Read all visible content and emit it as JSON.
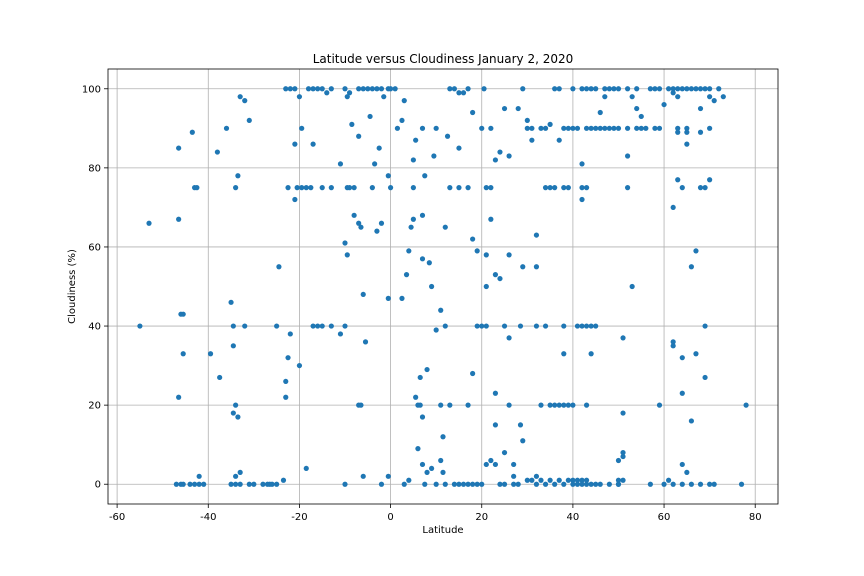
{
  "chart_data": {
    "type": "scatter",
    "title": "Latitude versus Cloudiness January 2, 2020",
    "xlabel": "Latitude",
    "ylabel": "Cloudiness (%)",
    "xlim": [
      -62,
      85
    ],
    "ylim": [
      -5,
      105
    ],
    "xticks": [
      -60,
      -40,
      -20,
      0,
      20,
      40,
      60,
      80
    ],
    "yticks": [
      0,
      20,
      40,
      60,
      80,
      100
    ],
    "grid": true,
    "marker_color": "#1f77b4",
    "points": [
      [
        -55,
        40
      ],
      [
        -53,
        66
      ],
      [
        -46.5,
        85
      ],
      [
        -46.5,
        67
      ],
      [
        -46.5,
        22
      ],
      [
        -46,
        43
      ],
      [
        -45.5,
        43
      ],
      [
        -45.5,
        33
      ],
      [
        -46,
        0
      ],
      [
        -45.5,
        0
      ],
      [
        -43.5,
        89
      ],
      [
        -43,
        75
      ],
      [
        -42.5,
        75
      ],
      [
        -42,
        2
      ],
      [
        -43,
        0
      ],
      [
        -42,
        0
      ],
      [
        -41,
        0
      ],
      [
        -39.5,
        33
      ],
      [
        -38,
        84
      ],
      [
        -37.5,
        27
      ],
      [
        -36,
        90
      ],
      [
        -35,
        46
      ],
      [
        -34.5,
        40
      ],
      [
        -34.5,
        35
      ],
      [
        -34.5,
        18
      ],
      [
        -34,
        20
      ],
      [
        -34,
        75
      ],
      [
        -33.5,
        78
      ],
      [
        -33.5,
        17
      ],
      [
        -33,
        3
      ],
      [
        -33,
        98
      ],
      [
        -32,
        97
      ],
      [
        -34,
        2
      ],
      [
        -35,
        0
      ],
      [
        -34,
        0
      ],
      [
        -33,
        0
      ],
      [
        -32,
        40
      ],
      [
        -31,
        92
      ],
      [
        -31,
        0
      ],
      [
        -30,
        0
      ],
      [
        -28,
        0
      ],
      [
        -26,
        0
      ],
      [
        -25,
        0
      ],
      [
        -25,
        40
      ],
      [
        -24.5,
        55
      ],
      [
        -23.5,
        1
      ],
      [
        -23,
        22
      ],
      [
        -23,
        26
      ],
      [
        -22.5,
        32
      ],
      [
        -22,
        38
      ],
      [
        -23,
        100
      ],
      [
        -22,
        100
      ],
      [
        -21,
        100
      ],
      [
        -20,
        98
      ],
      [
        -19.5,
        90
      ],
      [
        -21,
        86
      ],
      [
        -21,
        72
      ],
      [
        -22.5,
        75
      ],
      [
        -20.5,
        75
      ],
      [
        -19.5,
        75
      ],
      [
        -18.5,
        75
      ],
      [
        -17.5,
        75
      ],
      [
        -20,
        30
      ],
      [
        -18.5,
        4
      ],
      [
        -18,
        100
      ],
      [
        -17,
        100
      ],
      [
        -16,
        100
      ],
      [
        -15,
        100
      ],
      [
        -14,
        99
      ],
      [
        -17,
        86
      ],
      [
        -15,
        75
      ],
      [
        -13,
        75
      ],
      [
        -17,
        40
      ],
      [
        -16,
        40
      ],
      [
        -15,
        40
      ],
      [
        -13,
        40
      ],
      [
        -11,
        38
      ],
      [
        -10,
        40
      ],
      [
        -13,
        100
      ],
      [
        -11,
        81
      ],
      [
        -10,
        61
      ],
      [
        -9.5,
        58
      ],
      [
        -10,
        100
      ],
      [
        -9,
        99
      ],
      [
        -9.5,
        98
      ],
      [
        -8.5,
        91
      ],
      [
        -8,
        75
      ],
      [
        -9,
        75
      ],
      [
        -9.5,
        75
      ],
      [
        -8,
        68
      ],
      [
        -7,
        66
      ],
      [
        -6.5,
        65
      ],
      [
        -7,
        88
      ],
      [
        -6,
        48
      ],
      [
        -5.5,
        36
      ],
      [
        -7,
        20
      ],
      [
        -6.5,
        20
      ],
      [
        -6,
        2
      ],
      [
        -10,
        0
      ],
      [
        -7,
        100
      ],
      [
        -6,
        100
      ],
      [
        -5,
        100
      ],
      [
        -4,
        100
      ],
      [
        -3,
        100
      ],
      [
        -2,
        100
      ],
      [
        -4.5,
        93
      ],
      [
        -4,
        75
      ],
      [
        -3.5,
        81
      ],
      [
        -3,
        64
      ],
      [
        -2.5,
        85
      ],
      [
        -2,
        66
      ],
      [
        -1.5,
        98
      ],
      [
        -0.5,
        100
      ],
      [
        0,
        100
      ],
      [
        1,
        100
      ],
      [
        -0.5,
        78
      ],
      [
        0,
        75
      ],
      [
        -0.5,
        47
      ],
      [
        -2,
        0
      ],
      [
        -0.5,
        2
      ],
      [
        1.5,
        90
      ],
      [
        2.5,
        92
      ],
      [
        3,
        97
      ],
      [
        2.5,
        47
      ],
      [
        3.5,
        53
      ],
      [
        4,
        59
      ],
      [
        4.5,
        65
      ],
      [
        5,
        67
      ],
      [
        5,
        75
      ],
      [
        5,
        82
      ],
      [
        5.5,
        87
      ],
      [
        7,
        90
      ],
      [
        7.5,
        78
      ],
      [
        7,
        68
      ],
      [
        7,
        57
      ],
      [
        6.5,
        27
      ],
      [
        6.5,
        20
      ],
      [
        7,
        17
      ],
      [
        8,
        29
      ],
      [
        8.5,
        56
      ],
      [
        9,
        50
      ],
      [
        9.5,
        83
      ],
      [
        10,
        90
      ],
      [
        10,
        39
      ],
      [
        11,
        44
      ],
      [
        11,
        20
      ],
      [
        11.5,
        12
      ],
      [
        12,
        65
      ],
      [
        12.5,
        88
      ],
      [
        13,
        75
      ],
      [
        12,
        40
      ],
      [
        13,
        20
      ],
      [
        14,
        0
      ],
      [
        15,
        0
      ],
      [
        16,
        0
      ],
      [
        17,
        0
      ],
      [
        3,
        0
      ],
      [
        4,
        1
      ],
      [
        5.5,
        22
      ],
      [
        6,
        20
      ],
      [
        6,
        9
      ],
      [
        7,
        5
      ],
      [
        7.5,
        0
      ],
      [
        8,
        3
      ],
      [
        9,
        4
      ],
      [
        10,
        0
      ],
      [
        11,
        6
      ],
      [
        11.5,
        3
      ],
      [
        12,
        0
      ],
      [
        13,
        100
      ],
      [
        14,
        100
      ],
      [
        15,
        99
      ],
      [
        16,
        99
      ],
      [
        17,
        100
      ],
      [
        15,
        85
      ],
      [
        15,
        75
      ],
      [
        17,
        75
      ],
      [
        17,
        20
      ],
      [
        18,
        94
      ],
      [
        18,
        62
      ],
      [
        18,
        28
      ],
      [
        19,
        59
      ],
      [
        19,
        40
      ],
      [
        20,
        40
      ],
      [
        20,
        90
      ],
      [
        20.5,
        100
      ],
      [
        21,
        75
      ],
      [
        21,
        58
      ],
      [
        21,
        50
      ],
      [
        21,
        40
      ],
      [
        21,
        5
      ],
      [
        22,
        6
      ],
      [
        22,
        67
      ],
      [
        22,
        75
      ],
      [
        22,
        90
      ],
      [
        23,
        82
      ],
      [
        23,
        53
      ],
      [
        23,
        23
      ],
      [
        23,
        15
      ],
      [
        23,
        5
      ],
      [
        24,
        52
      ],
      [
        24,
        84
      ],
      [
        25,
        8
      ],
      [
        25,
        40
      ],
      [
        25,
        95
      ],
      [
        26,
        83
      ],
      [
        26,
        58
      ],
      [
        26,
        20
      ],
      [
        26,
        37
      ],
      [
        27,
        5
      ],
      [
        27,
        2
      ],
      [
        27,
        0
      ],
      [
        28,
        95
      ],
      [
        28.5,
        15
      ],
      [
        28.5,
        40
      ],
      [
        29,
        55
      ],
      [
        29,
        11
      ],
      [
        29,
        100
      ],
      [
        30,
        92
      ],
      [
        30,
        90
      ],
      [
        31,
        90
      ],
      [
        31,
        87
      ],
      [
        31,
        1
      ],
      [
        32,
        63
      ],
      [
        32,
        55
      ],
      [
        32,
        40
      ],
      [
        32,
        2
      ],
      [
        33,
        90
      ],
      [
        33,
        20
      ],
      [
        34,
        90
      ],
      [
        34,
        75
      ],
      [
        34,
        40
      ],
      [
        35,
        91
      ],
      [
        35,
        75
      ],
      [
        35,
        20
      ],
      [
        36,
        100
      ],
      [
        36,
        75
      ],
      [
        36,
        20
      ],
      [
        37,
        100
      ],
      [
        37,
        87
      ],
      [
        37,
        20
      ],
      [
        37,
        1
      ],
      [
        38,
        90
      ],
      [
        38,
        75
      ],
      [
        38,
        40
      ],
      [
        38,
        20
      ],
      [
        38,
        33
      ],
      [
        39,
        90
      ],
      [
        39,
        75
      ],
      [
        39,
        20
      ],
      [
        39,
        1
      ],
      [
        40,
        100
      ],
      [
        40,
        90
      ],
      [
        40,
        20
      ],
      [
        40,
        1
      ],
      [
        41,
        90
      ],
      [
        41,
        40
      ],
      [
        41,
        1
      ],
      [
        42,
        100
      ],
      [
        42,
        81
      ],
      [
        42,
        75
      ],
      [
        42,
        72
      ],
      [
        42,
        40
      ],
      [
        42,
        1
      ],
      [
        43,
        100
      ],
      [
        43,
        90
      ],
      [
        43,
        75
      ],
      [
        43,
        40
      ],
      [
        43,
        20
      ],
      [
        43,
        1
      ],
      [
        44,
        100
      ],
      [
        44,
        90
      ],
      [
        44,
        40
      ],
      [
        44,
        33
      ],
      [
        45,
        100
      ],
      [
        45,
        90
      ],
      [
        45,
        40
      ],
      [
        46,
        94
      ],
      [
        46,
        90
      ],
      [
        47,
        100
      ],
      [
        47,
        98
      ],
      [
        47,
        90
      ],
      [
        48,
        100
      ],
      [
        48,
        90
      ],
      [
        49,
        100
      ],
      [
        49,
        90
      ],
      [
        50,
        100
      ],
      [
        50,
        90
      ],
      [
        50,
        6
      ],
      [
        50,
        1
      ],
      [
        50,
        0
      ],
      [
        51,
        37
      ],
      [
        51,
        18
      ],
      [
        51,
        8
      ],
      [
        51,
        7
      ],
      [
        51,
        1
      ],
      [
        52,
        100
      ],
      [
        52,
        90
      ],
      [
        52,
        83
      ],
      [
        52,
        75
      ],
      [
        53,
        98
      ],
      [
        53,
        50
      ],
      [
        54,
        100
      ],
      [
        54,
        95
      ],
      [
        54,
        90
      ],
      [
        55,
        93
      ],
      [
        55,
        90
      ],
      [
        56,
        90
      ],
      [
        57,
        100
      ],
      [
        58,
        100
      ],
      [
        58,
        90
      ],
      [
        59,
        90
      ],
      [
        59,
        20
      ],
      [
        59,
        100
      ],
      [
        60,
        96
      ],
      [
        61,
        100
      ],
      [
        61,
        1
      ],
      [
        62,
        100
      ],
      [
        62,
        99
      ],
      [
        62,
        70
      ],
      [
        62,
        36
      ],
      [
        62,
        35
      ],
      [
        63,
        100
      ],
      [
        63,
        98
      ],
      [
        63,
        89
      ],
      [
        63,
        77
      ],
      [
        63,
        90
      ],
      [
        64,
        100
      ],
      [
        64,
        75
      ],
      [
        64,
        32
      ],
      [
        64,
        23
      ],
      [
        64,
        5
      ],
      [
        65,
        100
      ],
      [
        65,
        90
      ],
      [
        65,
        89
      ],
      [
        65,
        86
      ],
      [
        65,
        3
      ],
      [
        66,
        100
      ],
      [
        66,
        55
      ],
      [
        66,
        16
      ],
      [
        67,
        100
      ],
      [
        67,
        59
      ],
      [
        67,
        33
      ],
      [
        68,
        100
      ],
      [
        68,
        95
      ],
      [
        68,
        89
      ],
      [
        68,
        75
      ],
      [
        69,
        100
      ],
      [
        69,
        75
      ],
      [
        69,
        27
      ],
      [
        69,
        40
      ],
      [
        70,
        100
      ],
      [
        70,
        98
      ],
      [
        70,
        90
      ],
      [
        70,
        77
      ],
      [
        71,
        97
      ],
      [
        71,
        0
      ],
      [
        72,
        100
      ],
      [
        73,
        98
      ],
      [
        77,
        0
      ],
      [
        78,
        20
      ],
      [
        57,
        0
      ],
      [
        60,
        0
      ],
      [
        62,
        0
      ],
      [
        64,
        0
      ],
      [
        66,
        0
      ],
      [
        68,
        0
      ],
      [
        70,
        0
      ],
      [
        44,
        0
      ],
      [
        46,
        0
      ],
      [
        48,
        0
      ],
      [
        50,
        0
      ],
      [
        36,
        0
      ],
      [
        35,
        1
      ],
      [
        33,
        1
      ],
      [
        32,
        0
      ],
      [
        34,
        0
      ],
      [
        38,
        0
      ],
      [
        40,
        0
      ],
      [
        41,
        0
      ],
      [
        42,
        0
      ],
      [
        43,
        0
      ],
      [
        45,
        0
      ],
      [
        24,
        0
      ],
      [
        25,
        0
      ],
      [
        28,
        0
      ],
      [
        30,
        1
      ],
      [
        18,
        0
      ],
      [
        19,
        0
      ],
      [
        20,
        0
      ],
      [
        -47,
        0
      ],
      [
        -44,
        0
      ],
      [
        -26.5,
        0
      ],
      [
        -27,
        0
      ]
    ]
  }
}
